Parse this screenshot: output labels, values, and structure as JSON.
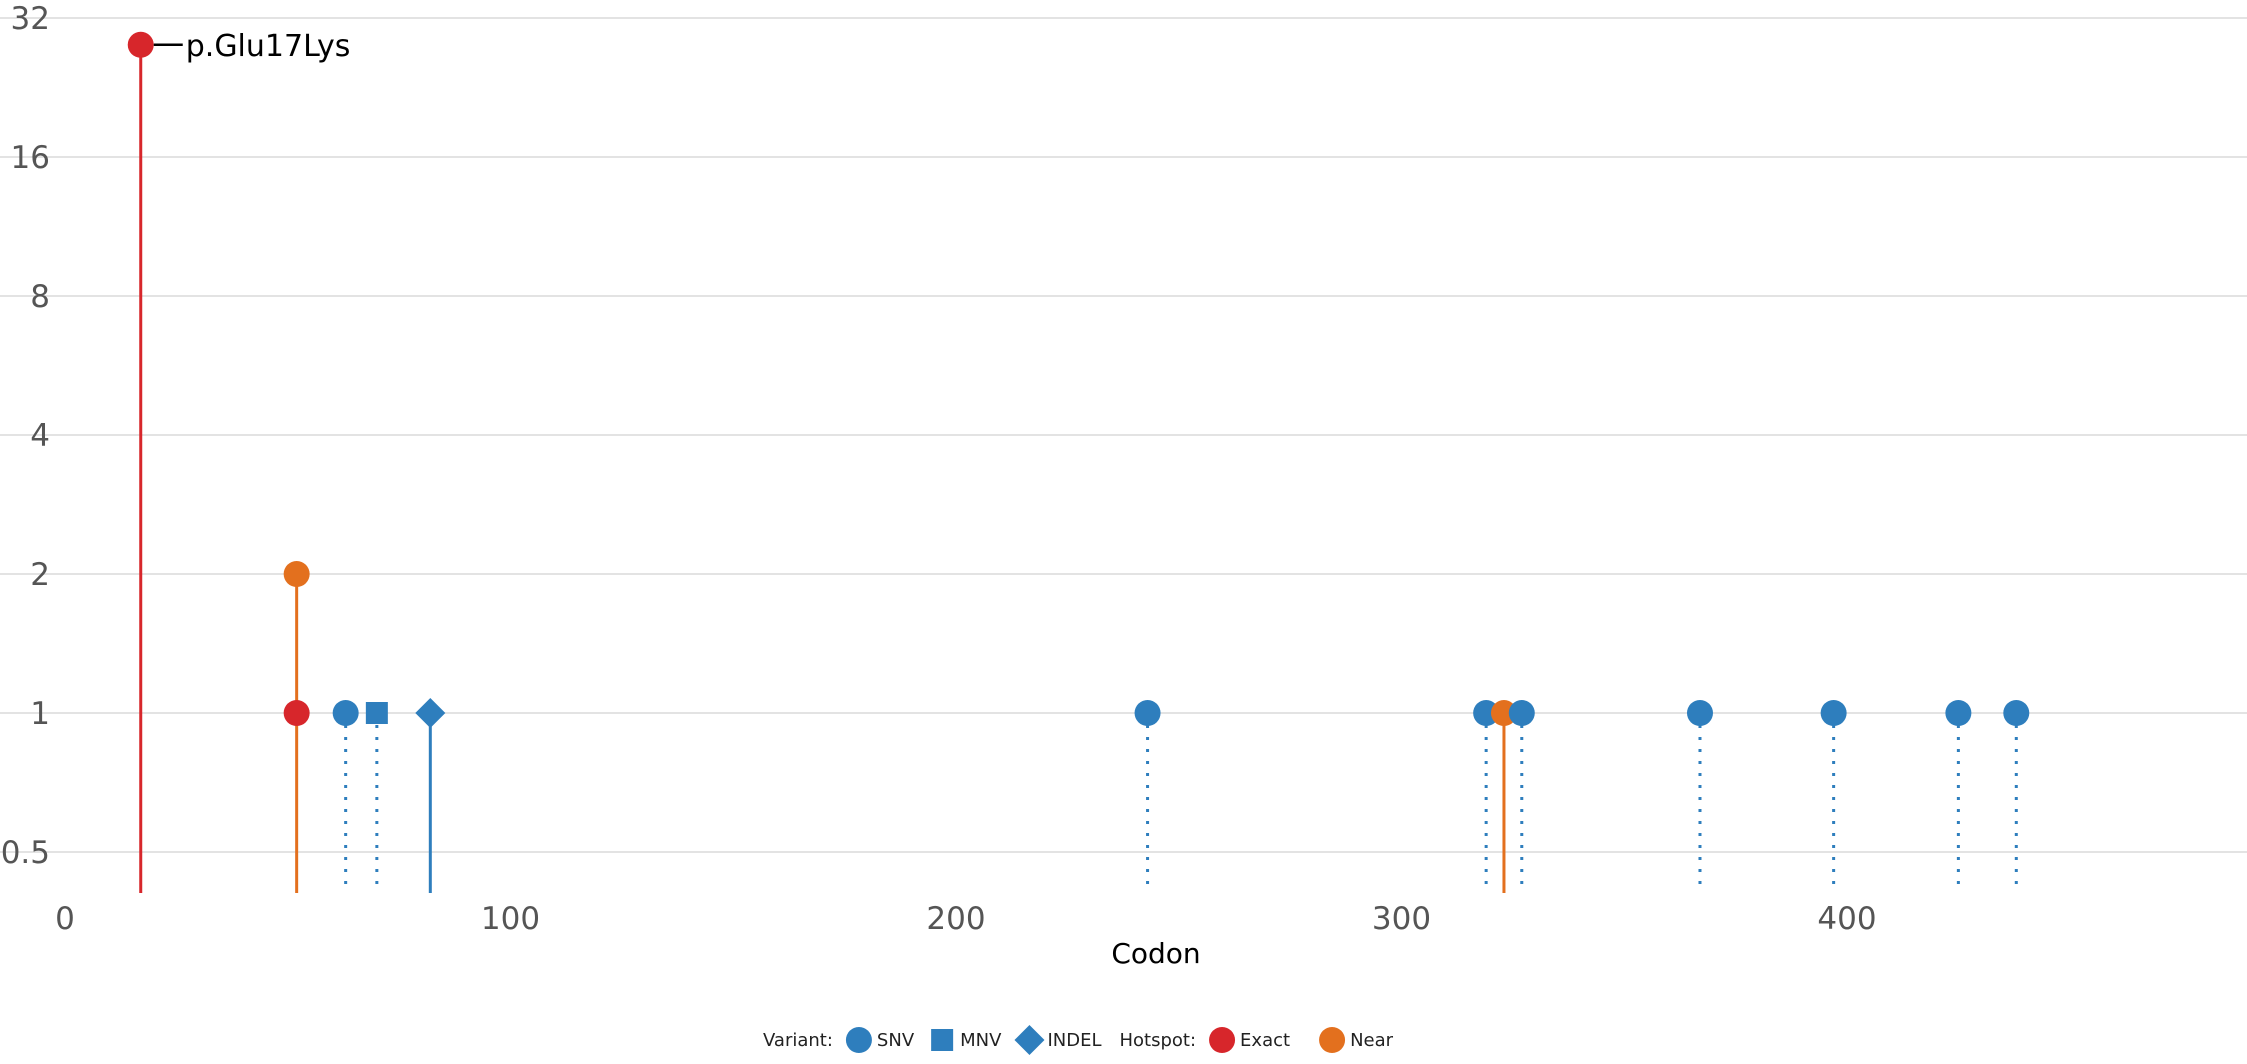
{
  "chart_data": {
    "type": "lollipop",
    "xlabel": "Codon",
    "ylabel": "",
    "x_ticks": [
      0,
      100,
      200,
      300,
      400
    ],
    "y_ticks": [
      "0.5",
      "1",
      "2",
      "4",
      "8",
      "16",
      "32"
    ],
    "y_tick_values": [
      0.5,
      1,
      2,
      4,
      8,
      16,
      32
    ],
    "y_scale": "log2",
    "xlim": [
      0,
      490
    ],
    "ylim": [
      0.4,
      32
    ],
    "grid": "horizontal",
    "legend_position": "bottom",
    "points": [
      {
        "x": 17,
        "y": 28,
        "variant": "SNV",
        "hotspot": "Exact",
        "stem": "solid",
        "label": "p.Glu17Lys"
      },
      {
        "x": 52,
        "y": 2,
        "variant": "SNV",
        "hotspot": "Near",
        "stem": "solid"
      },
      {
        "x": 52,
        "y": 1,
        "variant": "SNV",
        "hotspot": "Exact",
        "stem": "none"
      },
      {
        "x": 63,
        "y": 1,
        "variant": "SNV",
        "hotspot": "None",
        "stem": "dotted"
      },
      {
        "x": 70,
        "y": 1,
        "variant": "MNV",
        "hotspot": "None",
        "stem": "dotted"
      },
      {
        "x": 82,
        "y": 1,
        "variant": "INDEL",
        "hotspot": "None",
        "stem": "solid"
      },
      {
        "x": 243,
        "y": 1,
        "variant": "SNV",
        "hotspot": "None",
        "stem": "dotted"
      },
      {
        "x": 319,
        "y": 1,
        "variant": "SNV",
        "hotspot": "None",
        "stem": "dotted"
      },
      {
        "x": 323,
        "y": 1,
        "variant": "SNV",
        "hotspot": "Near",
        "stem": "solid"
      },
      {
        "x": 327,
        "y": 1,
        "variant": "SNV",
        "hotspot": "None",
        "stem": "dotted"
      },
      {
        "x": 367,
        "y": 1,
        "variant": "SNV",
        "hotspot": "None",
        "stem": "dotted"
      },
      {
        "x": 397,
        "y": 1,
        "variant": "SNV",
        "hotspot": "None",
        "stem": "dotted"
      },
      {
        "x": 425,
        "y": 1,
        "variant": "SNV",
        "hotspot": "None",
        "stem": "dotted"
      },
      {
        "x": 438,
        "y": 1,
        "variant": "SNV",
        "hotspot": "None",
        "stem": "dotted"
      }
    ],
    "colors": {
      "variant": "#2E7EBD",
      "exact": "#D7262B",
      "near": "#E3701E",
      "grid": "#E3E3E3"
    },
    "legend": {
      "variant_title": "Variant:",
      "variant_items": [
        {
          "shape": "circle",
          "label": "SNV"
        },
        {
          "shape": "square",
          "label": "MNV"
        },
        {
          "shape": "diamond",
          "label": "INDEL"
        }
      ],
      "hotspot_title": "Hotspot:",
      "hotspot_items": [
        {
          "key": "exact",
          "label": "Exact"
        },
        {
          "key": "near",
          "label": "Near"
        }
      ]
    }
  }
}
